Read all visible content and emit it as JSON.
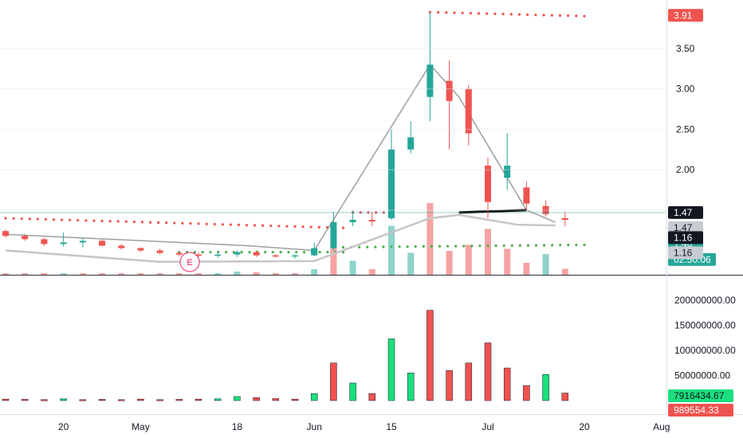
{
  "colors": {
    "up": "#26a69a",
    "down": "#ef5350",
    "vol_up_main": "#8fd3cb",
    "vol_down_main": "#f5a3a3",
    "vol_up_low": "#19e07d",
    "vol_down_low": "#ef5350",
    "resistance_dots": "#ef5350",
    "support_dots": "#4caf50",
    "trend_line": "#9e9e9e",
    "grid": "#e0e3eb",
    "current_line": "#26a69a"
  },
  "price_axis": {
    "ticks": [
      "3.50",
      "3.00",
      "2.50",
      "2.00",
      "1.50"
    ],
    "tick_values": [
      3.5,
      3.0,
      2.5,
      2.0,
      1.5
    ],
    "range": [
      0.7,
      4.1
    ]
  },
  "volume_axis": {
    "ticks": [
      "200000000.00",
      "150000000.00",
      "100000000.00",
      "50000000.00"
    ],
    "tick_values": [
      200000000,
      150000000,
      100000000,
      50000000
    ],
    "range": [
      0,
      200000000
    ]
  },
  "time_axis": {
    "labels": [
      "20",
      "May",
      "18",
      "Jun",
      "15",
      "Jul",
      "20",
      "Aug"
    ],
    "label_bars": [
      3,
      7,
      12,
      16,
      20,
      25,
      30,
      34
    ]
  },
  "price_tags": [
    {
      "text": "3.91",
      "value": 3.91,
      "bg": "#ef5350",
      "fg": "#ffffff"
    },
    {
      "text": "1.47",
      "value": 1.47,
      "bg": "#131722",
      "fg": "#ffffff"
    },
    {
      "text": "1.47",
      "value": 1.47,
      "bg": "#c8cbd1",
      "fg": "#131722",
      "offset": 19
    },
    {
      "text": "1.46",
      "value": 1.46,
      "bg": "#26a69a",
      "fg": "#ffffff",
      "offset": 38
    },
    {
      "text": "02:50:06",
      "value": 1.46,
      "bg": "#26a69a",
      "fg": "#ffffff",
      "offset": 58
    },
    {
      "text": "1.16",
      "value": 1.16,
      "bg": "#131722",
      "fg": "#ffffff"
    },
    {
      "text": "1.16",
      "value": 1.16,
      "bg": "#c8cbd1",
      "fg": "#131722",
      "offset": 19
    }
  ],
  "volume_tags": [
    {
      "text": "7916434.67",
      "bg": "#19e07d",
      "fg": "#131722"
    },
    {
      "text": "989554.33",
      "bg": "#ef5350",
      "fg": "#ffffff"
    }
  ],
  "earnings_marker": "E",
  "resistance_levels": [
    {
      "from_bar": 0,
      "to_bar": 17.5,
      "start": 1.4,
      "end": 1.28
    },
    {
      "from_bar": 18,
      "to_bar": 19.6,
      "start": 1.47,
      "end": 1.47
    },
    {
      "from_bar": 22,
      "to_bar": 30,
      "start": 3.95,
      "end": 3.9
    }
  ],
  "support_levels": [
    {
      "from_bar": 9,
      "to_bar": 17.5,
      "start": 0.98,
      "end": 0.98
    },
    {
      "from_bar": 17.5,
      "to_bar": 30,
      "start": 1.04,
      "end": 1.07
    }
  ],
  "trend_lines": [
    {
      "points": [
        [
          0,
          1.2
        ],
        [
          12.5,
          1.06
        ],
        [
          16,
          1.0
        ],
        [
          22,
          3.3
        ],
        [
          23.5,
          2.9
        ],
        [
          27,
          1.5
        ],
        [
          28.5,
          1.35
        ]
      ],
      "color": "#9e9e9e",
      "width": 1.5
    },
    {
      "points": [
        [
          0,
          1.0
        ],
        [
          8,
          0.86
        ],
        [
          16,
          0.87
        ],
        [
          22,
          1.4
        ],
        [
          23.5,
          1.44
        ],
        [
          26.5,
          1.32
        ],
        [
          28.5,
          1.31
        ]
      ],
      "color": "#c6c6c6",
      "width": 2.5
    },
    {
      "points": [
        [
          23.5,
          1.47
        ],
        [
          27,
          1.5
        ]
      ],
      "color": "#000000",
      "width": 3
    }
  ],
  "chart_data": {
    "type": "candlestick",
    "x_axis_labels": [
      "20",
      "May",
      "18",
      "Jun",
      "15",
      "Jul",
      "20",
      "Aug"
    ],
    "candles": [
      {
        "o": 1.24,
        "h": 1.26,
        "l": 1.16,
        "c": 1.18
      },
      {
        "o": 1.18,
        "h": 1.2,
        "l": 1.12,
        "c": 1.14
      },
      {
        "o": 1.14,
        "h": 1.16,
        "l": 1.06,
        "c": 1.08
      },
      {
        "o": 1.08,
        "h": 1.22,
        "l": 1.05,
        "c": 1.1
      },
      {
        "o": 1.1,
        "h": 1.16,
        "l": 1.04,
        "c": 1.12
      },
      {
        "o": 1.12,
        "h": 1.14,
        "l": 1.05,
        "c": 1.06
      },
      {
        "o": 1.06,
        "h": 1.08,
        "l": 1.01,
        "c": 1.03
      },
      {
        "o": 1.03,
        "h": 1.04,
        "l": 0.98,
        "c": 1.0
      },
      {
        "o": 1.0,
        "h": 1.02,
        "l": 0.95,
        "c": 0.97
      },
      {
        "o": 0.97,
        "h": 0.99,
        "l": 0.93,
        "c": 0.95
      },
      {
        "o": 0.95,
        "h": 0.98,
        "l": 0.92,
        "c": 0.94
      },
      {
        "o": 0.94,
        "h": 0.96,
        "l": 0.91,
        "c": 0.95
      },
      {
        "o": 0.95,
        "h": 1.0,
        "l": 0.92,
        "c": 0.98
      },
      {
        "o": 0.98,
        "h": 1.0,
        "l": 0.92,
        "c": 0.94
      },
      {
        "o": 0.94,
        "h": 0.96,
        "l": 0.91,
        "c": 0.93
      },
      {
        "o": 0.93,
        "h": 0.95,
        "l": 0.9,
        "c": 0.94
      },
      {
        "o": 0.94,
        "h": 1.1,
        "l": 0.93,
        "c": 1.03
      },
      {
        "o": 1.03,
        "h": 1.48,
        "l": 1.0,
        "c": 1.35
      },
      {
        "o": 1.35,
        "h": 1.5,
        "l": 1.3,
        "c": 1.38
      },
      {
        "o": 1.38,
        "h": 1.48,
        "l": 1.3,
        "c": 1.36
      },
      {
        "o": 1.4,
        "h": 2.5,
        "l": 1.38,
        "c": 2.25
      },
      {
        "o": 2.25,
        "h": 2.6,
        "l": 2.2,
        "c": 2.4
      },
      {
        "o": 2.9,
        "h": 3.95,
        "l": 2.6,
        "c": 3.3
      },
      {
        "o": 3.1,
        "h": 3.35,
        "l": 2.25,
        "c": 2.85
      },
      {
        "o": 3.0,
        "h": 3.05,
        "l": 2.3,
        "c": 2.45
      },
      {
        "o": 2.05,
        "h": 2.15,
        "l": 1.4,
        "c": 1.6
      },
      {
        "o": 1.9,
        "h": 2.45,
        "l": 1.75,
        "c": 2.05
      },
      {
        "o": 1.78,
        "h": 1.85,
        "l": 1.5,
        "c": 1.58
      },
      {
        "o": 1.55,
        "h": 1.62,
        "l": 1.42,
        "c": 1.45
      },
      {
        "o": 1.4,
        "h": 1.48,
        "l": 1.3,
        "c": 1.38
      }
    ],
    "volume": [
      {
        "v": 3000000,
        "up": false
      },
      {
        "v": 2500000,
        "up": false
      },
      {
        "v": 2000000,
        "up": false
      },
      {
        "v": 3500000,
        "up": true
      },
      {
        "v": 2000000,
        "up": false
      },
      {
        "v": 2500000,
        "up": false
      },
      {
        "v": 2000000,
        "up": false
      },
      {
        "v": 3000000,
        "up": false
      },
      {
        "v": 2000000,
        "up": false
      },
      {
        "v": 2500000,
        "up": false
      },
      {
        "v": 3000000,
        "up": false
      },
      {
        "v": 3500000,
        "up": true
      },
      {
        "v": 8000000,
        "up": true
      },
      {
        "v": 6000000,
        "up": false
      },
      {
        "v": 4000000,
        "up": false
      },
      {
        "v": 3000000,
        "up": false
      },
      {
        "v": 14000000,
        "up": true
      },
      {
        "v": 75000000,
        "up": false
      },
      {
        "v": 35000000,
        "up": true
      },
      {
        "v": 14000000,
        "up": false
      },
      {
        "v": 123000000,
        "up": true
      },
      {
        "v": 55000000,
        "up": true
      },
      {
        "v": 180000000,
        "up": false
      },
      {
        "v": 60000000,
        "up": false
      },
      {
        "v": 75000000,
        "up": false
      },
      {
        "v": 115000000,
        "up": false
      },
      {
        "v": 65000000,
        "up": false
      },
      {
        "v": 30000000,
        "up": false
      },
      {
        "v": 52000000,
        "up": true
      },
      {
        "v": 15000000,
        "up": false
      }
    ],
    "price_ylim": [
      0.7,
      4.1
    ],
    "volume_ylim": [
      0,
      200000000
    ]
  }
}
